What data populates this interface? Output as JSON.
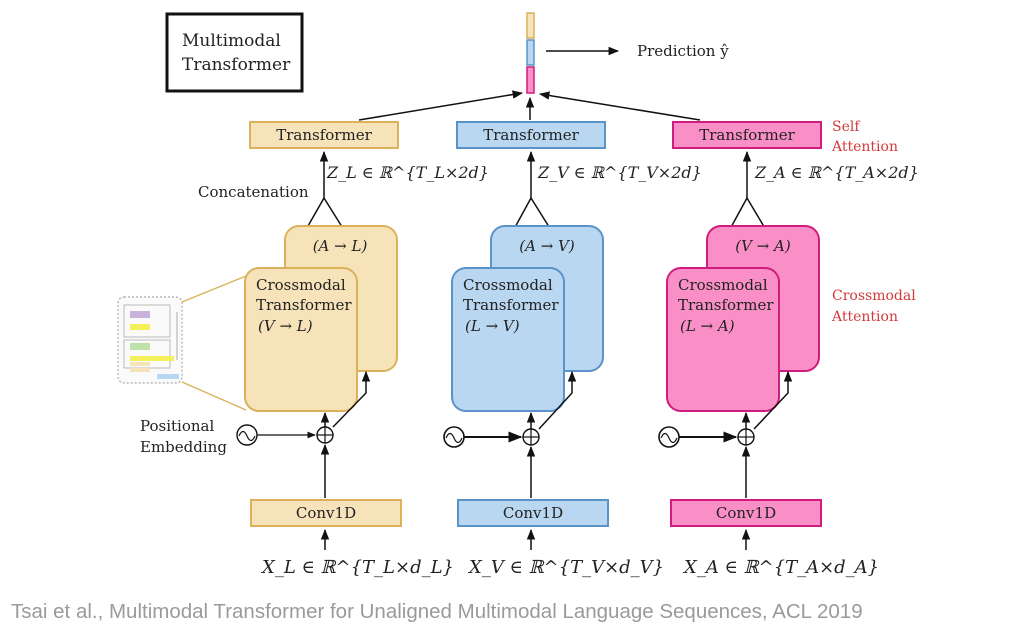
{
  "title": {
    "line1": "Multimodal",
    "line2": "Transformer"
  },
  "prediction_label": "Prediction ŷ",
  "colors": {
    "language_fill": "#F6E3B9",
    "language_stroke": "#D9B25A",
    "vision_fill": "#B9D7F0",
    "vision_stroke": "#5A93C8",
    "audio_fill": "#F98FC6",
    "audio_stroke": "#D01C7E",
    "annotation_red": "#D23A3A",
    "caption_gray": "#9A9A9A"
  },
  "annotations": {
    "self_attention_1": "Self",
    "self_attention_2": "Attention",
    "crossmodal_attention_1": "Crossmodal",
    "crossmodal_attention_2": "Attention",
    "concatenation": "Concatenation",
    "positional_1": "Positional",
    "positional_2": "Embedding"
  },
  "branches": [
    {
      "id": "language",
      "transformer_label": "Transformer",
      "z_label": "Z_L ∈ ℝ^{T_L×2d}",
      "back_block_label": "(A → L)",
      "front_block_line1": "Crossmodal",
      "front_block_line2": "Transformer",
      "front_block_line3": "(V → L)",
      "conv_label": "Conv1D",
      "x_label": "X_L ∈ ℝ^{T_L×d_L}"
    },
    {
      "id": "vision",
      "transformer_label": "Transformer",
      "z_label": "Z_V ∈ ℝ^{T_V×2d}",
      "back_block_label": "(A → V)",
      "front_block_line1": "Crossmodal",
      "front_block_line2": "Transformer",
      "front_block_line3": "(L → V)",
      "conv_label": "Conv1D",
      "x_label": "X_V ∈ ℝ^{T_V×d_V}"
    },
    {
      "id": "audio",
      "transformer_label": "Transformer",
      "z_label": "Z_A ∈ ℝ^{T_A×2d}",
      "back_block_label": "(V → A)",
      "front_block_line1": "Crossmodal",
      "front_block_line2": "Transformer",
      "front_block_line3": "(L → A)",
      "conv_label": "Conv1D",
      "x_label": "X_A ∈ ℝ^{T_A×d_A}"
    }
  ],
  "caption": "Tsai et al., Multimodal Transformer for Unaligned Multimodal Language Sequences, ACL 2019"
}
